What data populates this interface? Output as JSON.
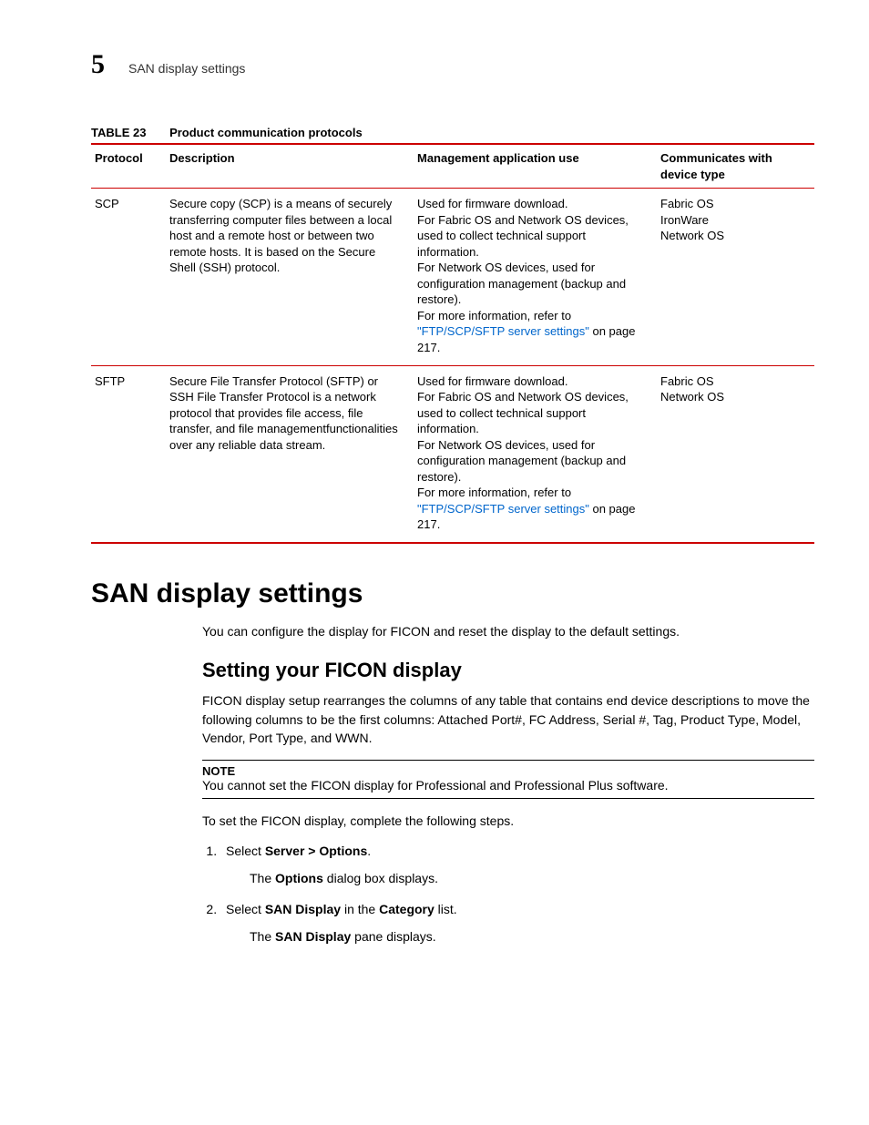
{
  "header": {
    "chapter_number": "5",
    "running_title": "SAN display settings"
  },
  "table": {
    "label": "TABLE 23",
    "title": "Product communication protocols",
    "columns": [
      "Protocol",
      "Description",
      "Management application use",
      "Communicates with device type"
    ],
    "rows": [
      {
        "protocol": "SCP",
        "description": "Secure copy (SCP) is a means of securely transferring computer files between a local host and a remote host or between two remote hosts. It is based on the Secure Shell (SSH) protocol.",
        "use_pre": "Used for firmware download.\nFor Fabric OS and Network OS devices, used to collect technical support information.\nFor Network OS devices, used for configuration management (backup and restore).\nFor more information, refer to ",
        "use_link": "\"FTP/SCP/SFTP server settings\"",
        "use_post": " on page 217.",
        "devices": "Fabric OS\nIronWare\nNetwork OS"
      },
      {
        "protocol": "SFTP",
        "description": "Secure File Transfer Protocol (SFTP) or SSH File Transfer Protocol is a network protocol that provides file access, file transfer, and file managementfunctionalities over any reliable data stream.",
        "use_pre": "Used for firmware download.\nFor Fabric OS and Network OS devices, used to collect technical support information.\nFor Network OS devices, used for configuration management (backup and restore).\nFor more information, refer to ",
        "use_link": "\"FTP/SCP/SFTP server settings\"",
        "use_post": " on page 217.",
        "devices": "Fabric OS\nNetwork OS"
      }
    ]
  },
  "section": {
    "heading": "SAN display settings",
    "intro": "You can configure the display for FICON and reset the display to the default settings.",
    "sub_heading": "Setting your FICON display",
    "sub_intro": "FICON display setup rearranges the columns of any table that contains end device descriptions to move the following columns to be the first columns: Attached Port#, FC Address, Serial #, Tag, Product Type, Model, Vendor, Port Type, and WWN.",
    "note_label": "NOTE",
    "note_text": "You cannot set the FICON display for Professional and Professional Plus software.",
    "lead_in": "To set the FICON display, complete the following steps.",
    "steps": [
      {
        "pre": "Select ",
        "bold": "Server > Options",
        "post": ".",
        "result_pre": "The ",
        "result_bold": "Options",
        "result_post": " dialog box displays."
      },
      {
        "pre": "Select ",
        "bold": "SAN Display",
        "mid": " in the ",
        "bold2": "Category",
        "post": " list.",
        "result_pre": "The ",
        "result_bold": "SAN Display",
        "result_post": " pane displays."
      }
    ]
  }
}
